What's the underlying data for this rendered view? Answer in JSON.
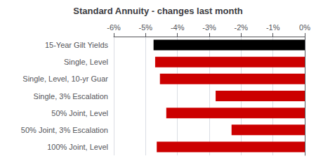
{
  "chart_data": {
    "type": "bar",
    "orientation": "horizontal",
    "title": "Standard Annuity - changes last month",
    "categories": [
      "15-Year Gilt Yields",
      "Single, Level",
      "Single, Level, 10-yr Guar",
      "Single, 3% Escalation",
      "50% Joint, Level",
      "50% Joint, 3% Escalation",
      "100% Joint, Level"
    ],
    "values": [
      -4.75,
      -4.7,
      -4.55,
      -2.8,
      -4.35,
      -2.3,
      -4.65
    ],
    "colors": [
      "#000000",
      "#cc0000",
      "#cc0000",
      "#cc0000",
      "#cc0000",
      "#cc0000",
      "#cc0000"
    ],
    "xlim": [
      -6,
      0
    ],
    "xticks": [
      {
        "value": -6,
        "label": "-6%"
      },
      {
        "value": -5,
        "label": "-5%"
      },
      {
        "value": -4,
        "label": "-4%"
      },
      {
        "value": -3,
        "label": "-3%"
      },
      {
        "value": -2,
        "label": "-2%"
      },
      {
        "value": -1,
        "label": "-1%"
      },
      {
        "value": 0,
        "label": "0%"
      }
    ],
    "grid": true
  }
}
